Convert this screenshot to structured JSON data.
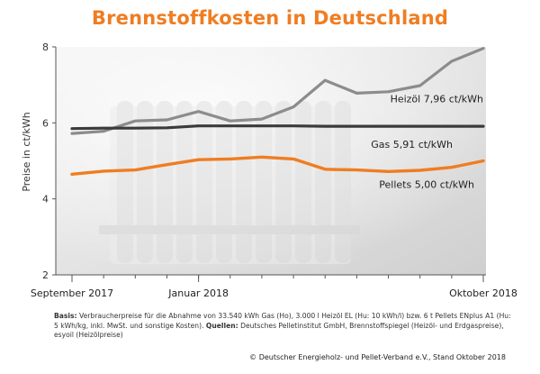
{
  "title": "Brennstoffkosten in Deutschland",
  "notes": {
    "basis_label": "Basis:",
    "basis_text": "Verbraucherpreise für die Abnahme von 33.540 kWh Gas (Ho), 3.000 l Heizöl EL (Hu: 10 kWh/l) bzw. 6 t Pellets ENplus A1 (Hu: 5 kWh/kg, inkl. MwSt. und sonstige Kosten).",
    "sources_label": "Quellen:",
    "sources_text": "Deutsches Pelletinstitut GmbH, Brennstoffspiegel (Heizöl- und Erdgaspreise), esyoil (Heizölpreise)"
  },
  "footer": "© Deutscher Energieholz- und Pellet-Verband e.V., Stand Oktober 2018",
  "colors": {
    "title": "#ef7d22",
    "heizoel": "#8c8c8c",
    "gas": "#3a3a3a",
    "pellets": "#ef7d22",
    "axis": "#555555"
  },
  "chart_data": {
    "type": "line",
    "title": "Brennstoffkosten in Deutschland",
    "ylabel": "Preise in ct/kWh",
    "xlabel": "",
    "ylim": [
      2,
      8
    ],
    "yticks": [
      2,
      4,
      6,
      8
    ],
    "x": [
      "2017-09",
      "2017-10",
      "2017-11",
      "2017-12",
      "2018-01",
      "2018-02",
      "2018-03",
      "2018-04",
      "2018-05",
      "2018-06",
      "2018-07",
      "2018-08",
      "2018-09",
      "2018-10"
    ],
    "xtick_labels": [
      {
        "index": 0,
        "label": "September 2017"
      },
      {
        "index": 4,
        "label": "Januar 2018"
      },
      {
        "index": 13,
        "label": "Oktober 2018"
      }
    ],
    "series": [
      {
        "key": "heizoel",
        "name": "Heizöl",
        "label": "Heizöl 7,96 ct/kWh",
        "values": [
          5.72,
          5.78,
          6.05,
          6.08,
          6.3,
          6.05,
          6.1,
          6.42,
          7.12,
          6.78,
          6.82,
          6.98,
          7.62,
          7.96
        ]
      },
      {
        "key": "gas",
        "name": "Gas",
        "label": "Gas 5,91 ct/kWh",
        "values": [
          5.85,
          5.86,
          5.86,
          5.87,
          5.92,
          5.92,
          5.92,
          5.92,
          5.91,
          5.91,
          5.91,
          5.91,
          5.91,
          5.91
        ]
      },
      {
        "key": "pellets",
        "name": "Pellets",
        "label": "Pellets 5,00 ct/kWh",
        "values": [
          4.65,
          4.73,
          4.76,
          4.9,
          5.03,
          5.05,
          5.1,
          5.05,
          4.78,
          4.76,
          4.72,
          4.75,
          4.83,
          5.0
        ]
      }
    ]
  }
}
